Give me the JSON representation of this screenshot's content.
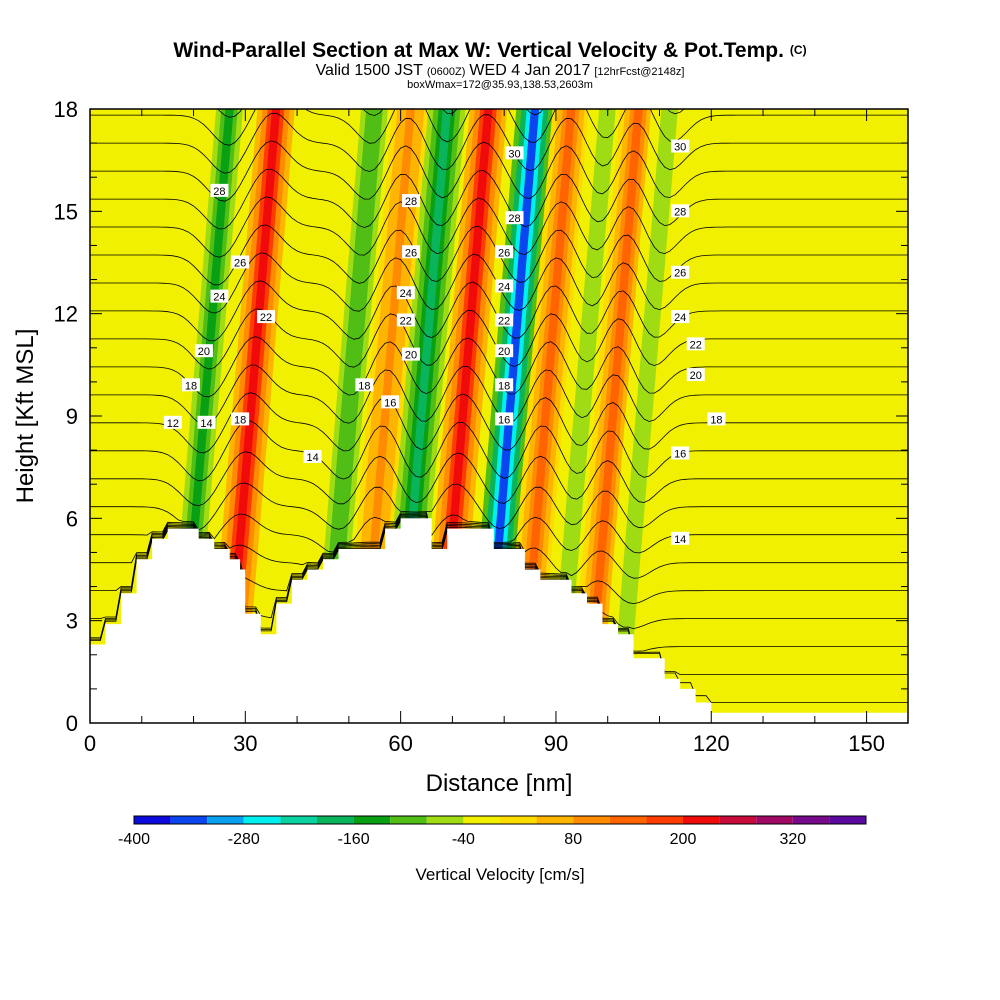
{
  "title": {
    "main": "Wind-Parallel Section at Max W: Vertical Velocity & Pot.Temp.",
    "copyright": "(C)",
    "valid_prefix": "Valid 1500 JST",
    "valid_utc": "(0600Z)",
    "valid_date": "WED 4 Jan 2017",
    "forecast": "[12hrFcst@2148z]",
    "box_info": "boxWmax=172@35.93,138.53,2603m"
  },
  "chart_data": {
    "type": "heatmap",
    "xlabel": "Distance [nm]",
    "ylabel": "Height [Kft MSL]",
    "xlim": [
      0,
      158
    ],
    "ylim": [
      0,
      18
    ],
    "x_ticks": [
      "0",
      "30",
      "60",
      "90",
      "120",
      "150"
    ],
    "y_ticks": [
      "0",
      "3",
      "6",
      "9",
      "12",
      "15",
      "18"
    ],
    "colorbar": {
      "label": "Vertical Velocity [cm/s]",
      "levels": [
        -400,
        -360,
        -320,
        -280,
        -240,
        -200,
        -160,
        -120,
        -80,
        -40,
        0,
        40,
        80,
        120,
        160,
        200,
        240,
        280,
        320,
        360
      ],
      "tick_labels": [
        "-400",
        "-280",
        "-160",
        "-40",
        "80",
        "200",
        "320"
      ],
      "colors": [
        "#0a0adc",
        "#0a46f0",
        "#0aa0f0",
        "#00f0f0",
        "#0ad2a0",
        "#0ab45a",
        "#0aa014",
        "#50be14",
        "#a0dc14",
        "#f0f000",
        "#ffdc00",
        "#ffb400",
        "#ff8c00",
        "#ff6400",
        "#ff3c00",
        "#f00a0a",
        "#c80a3c",
        "#a00a64",
        "#780a8c",
        "#5a0aa0"
      ]
    },
    "vertical_velocity_bands": [
      {
        "x": 22,
        "w": -150
      },
      {
        "x": 31,
        "w": 220
      },
      {
        "x": 50,
        "w": -110
      },
      {
        "x": 57,
        "w": 100
      },
      {
        "x": 64,
        "w": -180
      },
      {
        "x": 72,
        "w": 230
      },
      {
        "x": 81,
        "w": -330
      },
      {
        "x": 88,
        "w": 130
      },
      {
        "x": 95,
        "w": -60
      },
      {
        "x": 101,
        "w": 150
      },
      {
        "x": 107,
        "w": -60
      }
    ],
    "terrain": {
      "x": [
        0,
        3,
        3,
        6,
        6,
        9,
        9,
        12,
        12,
        15,
        15,
        18,
        18,
        21,
        21,
        24,
        24,
        27,
        27,
        29,
        29,
        30,
        30,
        33,
        33,
        36,
        36,
        39,
        39,
        42,
        42,
        45,
        45,
        48,
        48,
        57,
        57,
        60,
        60,
        63,
        63,
        66,
        66,
        69,
        69,
        75,
        75,
        78,
        78,
        84,
        84,
        87,
        87,
        93,
        93,
        96,
        96,
        99,
        99,
        102,
        102,
        105,
        105,
        108,
        108,
        111,
        111,
        114,
        114,
        117,
        117,
        120,
        120,
        123,
        123,
        126,
        126,
        135,
        135,
        150,
        150,
        158
      ],
      "y": [
        2.3,
        2.3,
        2.9,
        2.9,
        3.8,
        3.8,
        4.8,
        4.8,
        5.4,
        5.4,
        5.7,
        5.7,
        5.7,
        5.7,
        5.4,
        5.4,
        5.1,
        5.1,
        4.8,
        4.8,
        4.5,
        4.5,
        3.2,
        3.2,
        2.6,
        2.6,
        3.5,
        3.5,
        4.2,
        4.2,
        4.5,
        4.5,
        4.8,
        4.8,
        5.1,
        5.1,
        5.7,
        5.7,
        6.0,
        6.0,
        6.0,
        6.0,
        5.1,
        5.1,
        5.7,
        5.7,
        5.7,
        5.7,
        5.1,
        5.1,
        4.5,
        4.5,
        4.2,
        4.2,
        3.8,
        3.8,
        3.5,
        3.5,
        2.9,
        2.9,
        2.6,
        2.6,
        1.9,
        1.9,
        1.9,
        1.9,
        1.3,
        1.3,
        1.0,
        1.0,
        0.6,
        0.6,
        0.3,
        0.3,
        0.3,
        0.3,
        0.3,
        0.3,
        0.3,
        0.3,
        0.3,
        0.3
      ]
    },
    "theta_contours": {
      "levels": [
        10,
        11,
        12,
        13,
        14,
        15,
        16,
        17,
        18,
        19,
        20,
        21,
        22,
        23,
        24,
        25,
        26,
        27,
        28,
        29,
        30,
        31,
        32
      ],
      "labels": [
        {
          "text": "28",
          "x": 25,
          "y": 15.6
        },
        {
          "text": "26",
          "x": 29,
          "y": 13.5
        },
        {
          "text": "24",
          "x": 25,
          "y": 12.5
        },
        {
          "text": "22",
          "x": 34,
          "y": 11.9
        },
        {
          "text": "20",
          "x": 22,
          "y": 10.9
        },
        {
          "text": "18",
          "x": 19.5,
          "y": 9.9
        },
        {
          "text": "14",
          "x": 22.5,
          "y": 8.8
        },
        {
          "text": "12",
          "x": 16,
          "y": 8.8
        },
        {
          "text": "18",
          "x": 29,
          "y": 8.9
        },
        {
          "text": "14",
          "x": 43,
          "y": 7.8
        },
        {
          "text": "18",
          "x": 53,
          "y": 9.9
        },
        {
          "text": "16",
          "x": 58,
          "y": 9.4
        },
        {
          "text": "28",
          "x": 62,
          "y": 15.3
        },
        {
          "text": "26",
          "x": 62,
          "y": 13.8
        },
        {
          "text": "24",
          "x": 61,
          "y": 12.6
        },
        {
          "text": "22",
          "x": 61,
          "y": 11.8
        },
        {
          "text": "20",
          "x": 62,
          "y": 10.8
        },
        {
          "text": "30",
          "x": 82,
          "y": 16.7
        },
        {
          "text": "28",
          "x": 82,
          "y": 14.8
        },
        {
          "text": "26",
          "x": 80,
          "y": 13.8
        },
        {
          "text": "24",
          "x": 80,
          "y": 12.8
        },
        {
          "text": "22",
          "x": 80,
          "y": 11.8
        },
        {
          "text": "20",
          "x": 80,
          "y": 10.9
        },
        {
          "text": "18",
          "x": 80,
          "y": 9.9
        },
        {
          "text": "16",
          "x": 80,
          "y": 8.9
        },
        {
          "text": "30",
          "x": 114,
          "y": 16.9
        },
        {
          "text": "28",
          "x": 114,
          "y": 15.0
        },
        {
          "text": "26",
          "x": 114,
          "y": 13.2
        },
        {
          "text": "24",
          "x": 114,
          "y": 11.9
        },
        {
          "text": "22",
          "x": 117,
          "y": 11.1
        },
        {
          "text": "20",
          "x": 117,
          "y": 10.2
        },
        {
          "text": "18",
          "x": 121,
          "y": 8.9
        },
        {
          "text": "16",
          "x": 114,
          "y": 7.9
        },
        {
          "text": "14",
          "x": 114,
          "y": 5.4
        }
      ]
    }
  }
}
